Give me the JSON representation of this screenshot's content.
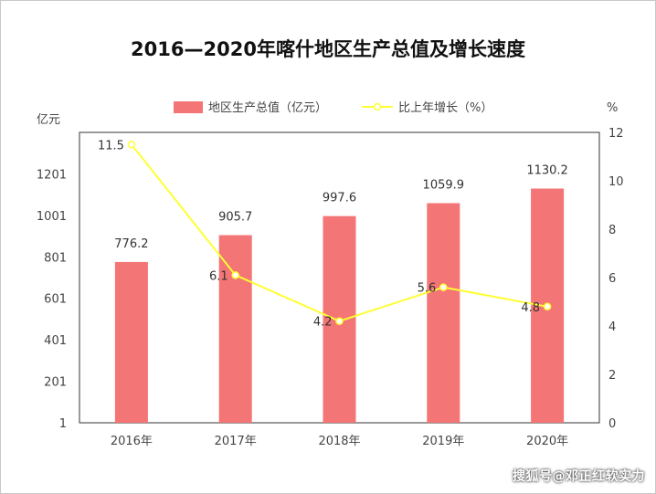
{
  "chart_data": {
    "type": "bar+line",
    "title": "2016—2020年喀什地区生产总值及增长速度",
    "categories": [
      "2016年",
      "2017年",
      "2018年",
      "2019年",
      "2020年"
    ],
    "series": [
      {
        "name": "地区生产总值（亿元）",
        "type": "bar",
        "axis": "left",
        "color": "#F47575",
        "values": [
          776.2,
          905.7,
          997.6,
          1059.9,
          1130.2
        ],
        "labels": [
          "776.2",
          "905.7",
          "997.6",
          "1059.9",
          "1130.2"
        ]
      },
      {
        "name": "比上年增长（%）",
        "type": "line",
        "axis": "right",
        "color": "#FFFF33",
        "values": [
          11.5,
          6.1,
          4.2,
          5.6,
          4.8
        ],
        "labels": [
          "11.5",
          "6.1",
          "4.2",
          "5.6",
          "4.8"
        ]
      }
    ],
    "left_axis": {
      "label": "亿元",
      "ylim": [
        1,
        1401
      ],
      "ticks": [
        "1",
        "201",
        "401",
        "601",
        "801",
        "1001",
        "1201"
      ]
    },
    "right_axis": {
      "label": "%",
      "ylim": [
        0,
        12
      ],
      "ticks": [
        "0",
        "2",
        "4",
        "6",
        "8",
        "10",
        "12"
      ]
    },
    "legend_position": "top"
  },
  "watermark": "搜狐号@邓正红软实力"
}
